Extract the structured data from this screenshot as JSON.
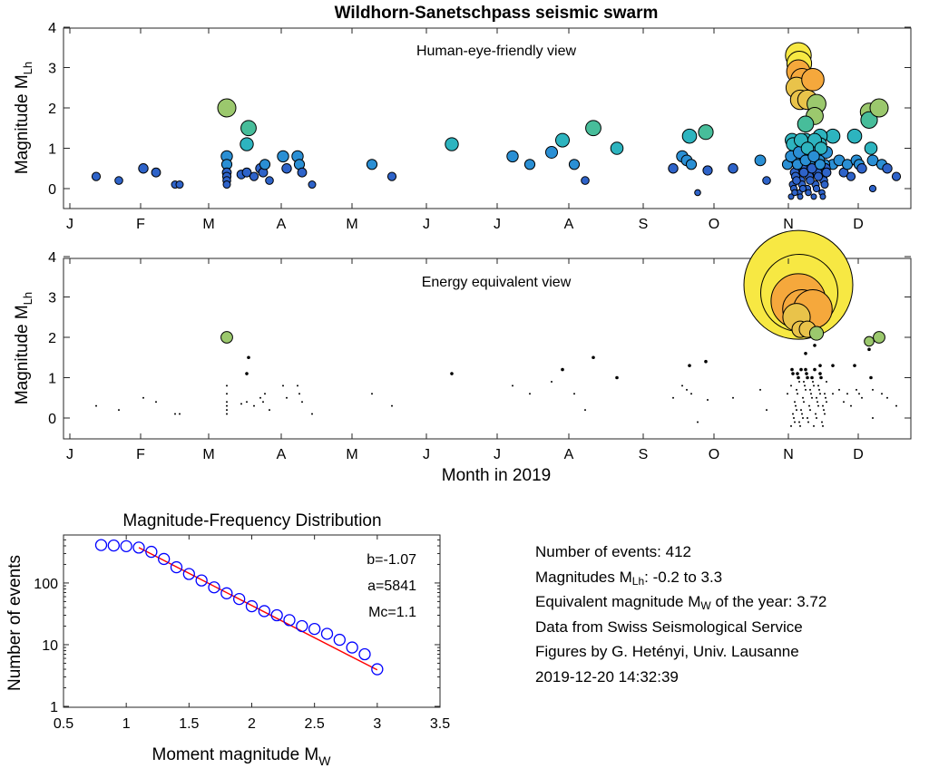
{
  "figure": {
    "title": "Wildhorn-Sanetschpass seismic swarm"
  },
  "chart_data": [
    {
      "type": "scatter",
      "subtitle": "Human-eye-friendly view",
      "ylabel": "Magnitude M",
      "ylabel_sub": "Lh",
      "ylim": [
        -0.6,
        4
      ],
      "yticks": [
        0,
        1,
        2,
        3,
        4
      ],
      "months": [
        "J",
        "F",
        "M",
        "A",
        "M",
        "J",
        "J",
        "A",
        "S",
        "O",
        "N",
        "D"
      ],
      "xlabel": "",
      "grid": false,
      "colors": {
        "low": "#2a5ccc",
        "mid": "#32b4b4",
        "high": "#a8d26c",
        "top": "#f7e843",
        "orange": "#f5a83c"
      }
    },
    {
      "type": "scatter",
      "subtitle": "Energy equivalent view",
      "ylabel": "Magnitude M",
      "ylabel_sub": "Lh",
      "ylim": [
        -0.6,
        4
      ],
      "yticks": [
        0,
        1,
        2,
        3,
        4
      ],
      "months": [
        "J",
        "F",
        "M",
        "A",
        "M",
        "J",
        "J",
        "A",
        "S",
        "O",
        "N",
        "D"
      ],
      "xlabel": "Month in 2019",
      "grid": false
    },
    {
      "type": "scatter",
      "title": "Magnitude-Frequency Distribution",
      "xlabel": "Moment magnitude M",
      "xlabel_sub": "W",
      "ylabel": "Number of events",
      "xlim": [
        0.5,
        3.5
      ],
      "xticks": [
        0.5,
        1,
        1.5,
        2,
        2.5,
        3,
        3.5
      ],
      "xtick_labels": [
        "0.5",
        "1",
        "1.5",
        "2",
        "2.5",
        "3",
        "3.5"
      ],
      "ylim": [
        1,
        600
      ],
      "yscale": "log",
      "yticks": [
        1,
        10,
        100
      ],
      "ytick_labels": [
        "1",
        "10",
        "100"
      ],
      "series": [
        {
          "x": [
            0.8,
            0.9,
            1.0,
            1.1,
            1.2,
            1.3,
            1.4,
            1.5,
            1.6,
            1.7,
            1.8,
            1.9,
            2.0,
            2.1,
            2.2,
            2.3,
            2.4,
            2.5,
            2.6,
            2.7,
            2.8,
            2.9,
            3.0
          ],
          "y": [
            412,
            405,
            395,
            375,
            320,
            245,
            180,
            140,
            110,
            85,
            68,
            55,
            42,
            35,
            30,
            25,
            20,
            18,
            15,
            12,
            9,
            7,
            4
          ],
          "marker": "circle",
          "color": "#0000ff"
        }
      ],
      "fit": {
        "x": [
          1.1,
          3.0
        ],
        "y": [
          375,
          3.9
        ],
        "color": "#ff0000"
      },
      "annotations": [
        "b=-1.07",
        "a=5841",
        "Mc=1.1"
      ]
    }
  ],
  "info": {
    "events": "Number of events: 412",
    "mag_range_prefix": "Magnitudes M",
    "mag_range_sub": "Lh",
    "mag_range_suffix": ": -0.2 to 3.3",
    "equiv_prefix": "Equivalent magnitude M",
    "equiv_sub": "W",
    "equiv_suffix": " of the year: 3.72",
    "source": "Data from Swiss Seismological Service",
    "credit": "Figures by G. Hetényi, Univ. Lausanne",
    "timestamp": "2019-12-20 14:32:39"
  }
}
